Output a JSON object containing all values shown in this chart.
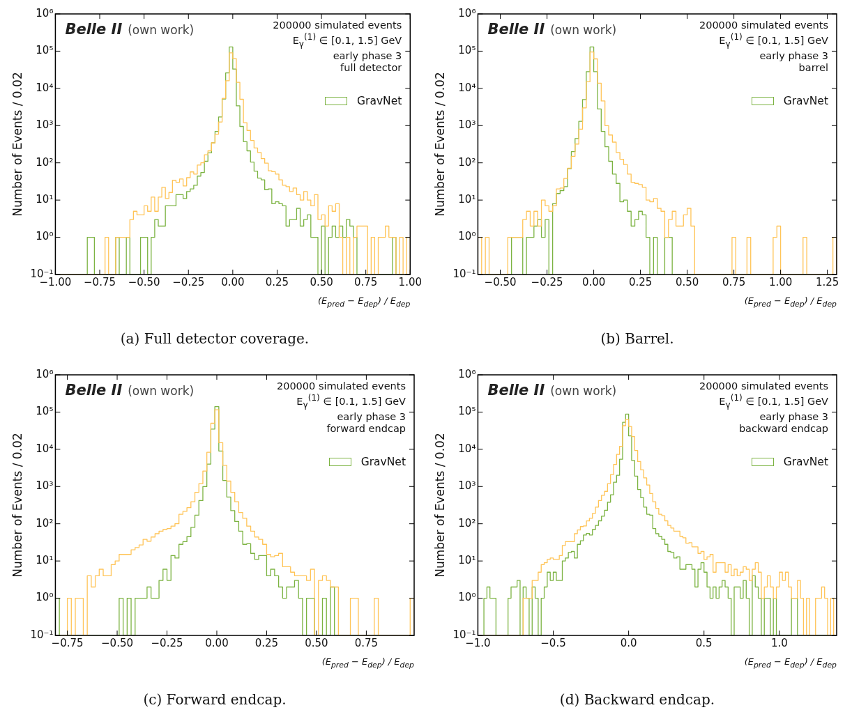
{
  "chart_data": [
    {
      "type": "histogram",
      "title": "(a) Full detector coverage.",
      "xlabel": "(E$_{pred}$ − E$_{dep}$) / E$_{dep}$",
      "ylabel": "Number of Events / 0.02",
      "annotations": [
        "Belle II",
        "(own work)",
        "200000 simulated events",
        "E$_{γ}$$^{(1)}$ ∈ [0.1, 1.5] GeV",
        "early phase 3",
        "full detector"
      ],
      "bins": [
        -1,
        -0.98,
        -0.96,
        -0.94,
        -0.92,
        -0.9,
        -0.88,
        -0.86,
        -0.84,
        -0.82,
        -0.8,
        -0.78,
        -0.76,
        -0.74,
        -0.72,
        -0.7,
        -0.68,
        -0.66,
        -0.64,
        -0.62,
        -0.6,
        -0.58,
        -0.56,
        -0.54,
        -0.52,
        -0.5,
        -0.48,
        -0.46,
        -0.44,
        -0.42,
        -0.4,
        -0.38,
        -0.36,
        -0.34,
        -0.32,
        -0.3,
        -0.28,
        -0.26,
        -0.24,
        -0.22,
        -0.2,
        -0.18,
        -0.16,
        -0.14,
        -0.12,
        -0.1,
        -0.08,
        -0.06,
        -0.04,
        -0.02,
        0,
        0.02,
        0.04,
        0.06,
        0.08,
        0.1,
        0.12,
        0.14,
        0.16,
        0.18,
        0.2,
        0.22,
        0.24,
        0.26,
        0.28,
        0.3,
        0.32,
        0.34,
        0.36,
        0.38,
        0.4,
        0.42,
        0.44,
        0.46,
        0.48,
        0.5,
        0.52,
        0.54,
        0.56,
        0.58,
        0.6,
        0.62,
        0.64,
        0.66,
        0.68,
        0.7,
        0.72,
        0.74,
        0.76,
        0.78,
        0.8,
        0.82,
        0.84,
        0.86,
        0.88,
        0.9,
        0.92,
        0.94,
        0.96,
        0.98,
        1
      ],
      "series": [
        {
          "name": "GravNet",
          "color": "#7cb342",
          "values": [
            null,
            null,
            null,
            null,
            null,
            null,
            null,
            null,
            null,
            1,
            1,
            null,
            null,
            null,
            null,
            null,
            null,
            1,
            null,
            null,
            1,
            null,
            null,
            null,
            1,
            1,
            null,
            1,
            3,
            2,
            2,
            7,
            7,
            7,
            14,
            14,
            11,
            17,
            20,
            25,
            44,
            55,
            110,
            186,
            345,
            700,
            1700,
            5200,
            26000,
            130000,
            33000,
            3400,
            950,
            370,
            210,
            105,
            60,
            39,
            35,
            19,
            20,
            8,
            9,
            8,
            7,
            2,
            3,
            3,
            6,
            2,
            3,
            4,
            1,
            1,
            null,
            2,
            null,
            1,
            2,
            1,
            2,
            1,
            3,
            2,
            1,
            null,
            null,
            null,
            null,
            null,
            null,
            null,
            null,
            null,
            null,
            1,
            null,
            null,
            null,
            null
          ]
        },
        {
          "color": "#ffc457",
          "values": [
            null,
            null,
            null,
            null,
            null,
            null,
            null,
            null,
            null,
            null,
            null,
            null,
            null,
            null,
            1,
            null,
            null,
            1,
            1,
            1,
            1,
            3,
            5,
            4,
            4,
            7,
            5,
            12,
            5,
            12,
            22,
            11,
            16,
            34,
            30,
            37,
            24,
            40,
            57,
            50,
            87,
            100,
            165,
            210,
            345,
            590,
            1250,
            5400,
            16000,
            90000,
            63000,
            14600,
            5100,
            1200,
            740,
            400,
            250,
            190,
            130,
            98,
            61,
            58,
            50,
            35,
            25,
            23,
            17,
            21,
            14,
            10,
            17,
            10,
            7,
            14,
            3,
            4,
            2,
            7,
            5,
            8,
            1,
            null,
            1,
            null,
            1,
            2,
            2,
            2,
            null,
            1,
            null,
            1,
            1,
            2,
            1,
            1,
            null,
            1,
            null,
            1
          ]
        }
      ],
      "xlim": [
        -1,
        1
      ],
      "xticks": [
        {
          "value": -1,
          "label": "−1.00"
        },
        {
          "value": -0.75,
          "label": "−0.75"
        },
        {
          "value": -0.5,
          "label": "−0.50"
        },
        {
          "value": -0.25,
          "label": "−0.25"
        },
        {
          "value": 0,
          "label": "0.00"
        },
        {
          "value": 0.25,
          "label": "0.25"
        },
        {
          "value": 0.5,
          "label": "0.50"
        },
        {
          "value": 0.75,
          "label": "0.75"
        },
        {
          "value": 1,
          "label": "1.00"
        }
      ],
      "ylim": [
        0.1,
        1000000
      ],
      "yticks": [
        {
          "value": 0.1,
          "label": "10⁻¹"
        },
        {
          "value": 1,
          "label": "10⁰"
        },
        {
          "value": 10,
          "label": "10¹"
        },
        {
          "value": 100,
          "label": "10²"
        },
        {
          "value": 1000,
          "label": "10³"
        },
        {
          "value": 10000,
          "label": "10⁴"
        },
        {
          "value": 100000,
          "label": "10⁵"
        },
        {
          "value": 1000000,
          "label": "10⁶"
        }
      ],
      "log": "y",
      "legend": "top right"
    },
    {
      "type": "histogram",
      "title": "(b) Barrel.",
      "xlabel": "(E$_{pred}$ − E$_{dep}$) / E$_{dep}$",
      "ylabel": "Number of Events / 0.02",
      "annotations": [
        "Belle II",
        "(own work)",
        "200000 simulated events",
        "E$_{γ}$$^{(1)}$ ∈ [0.1, 1.5] GeV",
        "early phase 3",
        "barrel"
      ],
      "bins": [
        -0.62,
        -0.6,
        -0.58,
        -0.56,
        -0.54,
        -0.52,
        -0.5,
        -0.48,
        -0.46,
        -0.44,
        -0.42,
        -0.4,
        -0.38,
        -0.36,
        -0.34,
        -0.32,
        -0.3,
        -0.28,
        -0.26,
        -0.24,
        -0.22,
        -0.2,
        -0.18,
        -0.16,
        -0.14,
        -0.12,
        -0.1,
        -0.08,
        -0.06,
        -0.04,
        -0.02,
        0,
        0.02,
        0.04,
        0.06,
        0.08,
        0.1,
        0.12,
        0.14,
        0.16,
        0.18,
        0.2,
        0.22,
        0.24,
        0.26,
        0.28,
        0.3,
        0.32,
        0.34,
        0.36,
        0.38,
        0.4,
        0.42,
        0.44,
        0.46,
        0.48,
        0.5,
        0.52,
        0.54,
        0.56,
        0.58,
        0.6,
        0.62,
        0.64,
        0.66,
        0.68,
        0.7,
        0.72,
        0.74,
        0.76,
        0.78,
        0.8,
        0.82,
        0.84,
        0.86,
        0.88,
        0.9,
        0.92,
        0.94,
        0.96,
        0.98,
        1,
        1.02,
        1.04,
        1.06,
        1.08,
        1.1,
        1.12,
        1.14,
        1.16,
        1.18,
        1.2,
        1.22,
        1.24,
        1.26,
        1.28,
        1.3
      ],
      "series": [
        {
          "name": "GravNet",
          "color": "#7cb342",
          "values": [
            null,
            null,
            null,
            null,
            null,
            null,
            null,
            null,
            null,
            1,
            1,
            1,
            null,
            1,
            1,
            2,
            3,
            1,
            3,
            null,
            8,
            15,
            18,
            23,
            70,
            200,
            450,
            1300,
            5000,
            28000,
            130000,
            28000,
            2800,
            700,
            270,
            110,
            50,
            28,
            9,
            10,
            5,
            2,
            3,
            5,
            4,
            1,
            null,
            1,
            null,
            null,
            1,
            1,
            null,
            null,
            null,
            null,
            null,
            null,
            null,
            null,
            null,
            null,
            null,
            null,
            null,
            null,
            null,
            null,
            null,
            null,
            null,
            null,
            null,
            null,
            null,
            null,
            null,
            null,
            null,
            null,
            null,
            null,
            null,
            null,
            null,
            null,
            null,
            null,
            null,
            null,
            null,
            null,
            null,
            null,
            null,
            null
          ]
        },
        {
          "color": "#ffc457",
          "values": [
            1,
            null,
            1,
            null,
            null,
            null,
            null,
            null,
            1,
            1,
            1,
            1,
            3,
            5,
            2,
            5,
            2,
            10,
            7,
            5,
            7,
            20,
            21,
            38,
            72,
            150,
            320,
            800,
            3000,
            15000,
            95000,
            62000,
            13800,
            4600,
            1000,
            560,
            360,
            190,
            125,
            90,
            50,
            30,
            28,
            26,
            22,
            10,
            9,
            11,
            6,
            5,
            1,
            3,
            5,
            2,
            2,
            4,
            6,
            2,
            null,
            null,
            null,
            null,
            null,
            null,
            null,
            null,
            null,
            null,
            1,
            null,
            null,
            null,
            1,
            null,
            null,
            null,
            null,
            null,
            null,
            1,
            2,
            null,
            null,
            null,
            null,
            null,
            null,
            1,
            null,
            null,
            null,
            null,
            null,
            null,
            null,
            1
          ]
        }
      ],
      "xlim": [
        -0.62,
        1.3
      ],
      "xticks": [
        {
          "value": -0.5,
          "label": "−0.50"
        },
        {
          "value": -0.25,
          "label": "−0.25"
        },
        {
          "value": 0,
          "label": "0.00"
        },
        {
          "value": 0.25,
          "label": "0.25"
        },
        {
          "value": 0.5,
          "label": "0.50"
        },
        {
          "value": 0.75,
          "label": "0.75"
        },
        {
          "value": 1,
          "label": "1.00"
        },
        {
          "value": 1.25,
          "label": "1.25"
        }
      ],
      "ylim": [
        0.1,
        1000000
      ],
      "yticks": [
        {
          "value": 0.1,
          "label": "10⁻¹"
        },
        {
          "value": 1,
          "label": "10⁰"
        },
        {
          "value": 10,
          "label": "10¹"
        },
        {
          "value": 100,
          "label": "10²"
        },
        {
          "value": 1000,
          "label": "10³"
        },
        {
          "value": 10000,
          "label": "10⁴"
        },
        {
          "value": 100000,
          "label": "10⁵"
        },
        {
          "value": 1000000,
          "label": "10⁶"
        }
      ],
      "log": "y",
      "legend": "top right"
    },
    {
      "type": "histogram",
      "title": "(c) Forward endcap.",
      "xlabel": "(E$_{pred}$ − E$_{dep}$) / E$_{dep}$",
      "ylabel": "Number of Events / 0.02",
      "annotations": [
        "Belle II",
        "(own work)",
        "200000 simulated events",
        "E$_{γ}$$^{(1)}$ ∈ [0.1, 1.5] GeV",
        "early phase 3",
        "forward endcap"
      ],
      "bins": [
        -0.81,
        -0.79,
        -0.77,
        -0.75,
        -0.73,
        -0.71,
        -0.69,
        -0.67,
        -0.65,
        -0.63,
        -0.61,
        -0.59,
        -0.57,
        -0.55,
        -0.53,
        -0.51,
        -0.49,
        -0.47,
        -0.45,
        -0.43,
        -0.41,
        -0.39,
        -0.37,
        -0.35,
        -0.33,
        -0.31,
        -0.29,
        -0.27,
        -0.25,
        -0.23,
        -0.21,
        -0.19,
        -0.17,
        -0.15,
        -0.13,
        -0.11,
        -0.09,
        -0.07,
        -0.05,
        -0.03,
        -0.01,
        0.01,
        0.03,
        0.05,
        0.07,
        0.09,
        0.11,
        0.13,
        0.15,
        0.17,
        0.19,
        0.21,
        0.23,
        0.25,
        0.27,
        0.29,
        0.31,
        0.33,
        0.35,
        0.37,
        0.39,
        0.41,
        0.43,
        0.45,
        0.47,
        0.49,
        0.51,
        0.53,
        0.55,
        0.57,
        0.59,
        0.61,
        0.63,
        0.65,
        0.67,
        0.69,
        0.71,
        0.73,
        0.75,
        0.77,
        0.79,
        0.81,
        0.83,
        0.85,
        0.87,
        0.89,
        0.91,
        0.93,
        0.95,
        0.97,
        0.99
      ],
      "series": [
        {
          "name": "GravNet",
          "color": "#7cb342",
          "values": [
            1,
            null,
            null,
            null,
            null,
            null,
            null,
            null,
            null,
            null,
            null,
            null,
            null,
            null,
            null,
            null,
            1,
            null,
            1,
            null,
            1,
            1,
            1,
            2,
            1,
            1,
            3,
            6,
            3,
            14,
            12,
            28,
            33,
            45,
            80,
            170,
            420,
            1000,
            4000,
            35000,
            140000,
            9000,
            1450,
            520,
            225,
            115,
            63,
            28,
            29,
            16,
            11,
            14,
            14,
            4,
            6,
            4,
            2,
            1,
            2,
            2,
            3,
            1,
            null,
            1,
            1,
            null,
            null,
            1,
            null,
            2,
            null,
            null,
            null,
            null,
            null,
            null,
            null,
            null,
            null,
            null,
            null,
            null,
            null,
            null,
            null,
            null,
            null,
            null,
            null,
            null
          ]
        },
        {
          "color": "#ffc457",
          "values": [
            null,
            null,
            null,
            1,
            null,
            1,
            1,
            null,
            4,
            2,
            4,
            6,
            4,
            4,
            8,
            10,
            15,
            15,
            15,
            20,
            23,
            27,
            38,
            34,
            44,
            54,
            63,
            70,
            74,
            86,
            100,
            180,
            215,
            270,
            390,
            700,
            1200,
            2600,
            8300,
            50000,
            115000,
            15000,
            3700,
            1400,
            700,
            390,
            200,
            140,
            86,
            63,
            44,
            38,
            28,
            15,
            13,
            14,
            16,
            7,
            7,
            5,
            4,
            4,
            4,
            3,
            6,
            null,
            3,
            4,
            3,
            2,
            2,
            null,
            null,
            null,
            1,
            1,
            null,
            null,
            null,
            null,
            1,
            null,
            null,
            null,
            null,
            null,
            null,
            null,
            null,
            1
          ]
        }
      ],
      "xlim": [
        -0.81,
        0.99
      ],
      "xticks": [
        {
          "value": -0.75,
          "label": "−0.75"
        },
        {
          "value": -0.5,
          "label": "−0.50"
        },
        {
          "value": -0.25,
          "label": "−0.25"
        },
        {
          "value": 0,
          "label": "0.00"
        },
        {
          "value": 0.25,
          "label": "0.25"
        },
        {
          "value": 0.5,
          "label": "0.50"
        },
        {
          "value": 0.75,
          "label": "0.75"
        }
      ],
      "ylim": [
        0.1,
        1000000
      ],
      "yticks": [
        {
          "value": 0.1,
          "label": "10⁻¹"
        },
        {
          "value": 1,
          "label": "10⁰"
        },
        {
          "value": 10,
          "label": "10¹"
        },
        {
          "value": 100,
          "label": "10²"
        },
        {
          "value": 1000,
          "label": "10³"
        },
        {
          "value": 10000,
          "label": "10⁴"
        },
        {
          "value": 100000,
          "label": "10⁵"
        },
        {
          "value": 1000000,
          "label": "10⁶"
        }
      ],
      "log": "y",
      "legend": "top right"
    },
    {
      "type": "histogram",
      "title": "(d) Backward endcap.",
      "xlabel": "(E$_{pred}$ − E$_{dep}$) / E$_{dep}$",
      "ylabel": "Number of Events / 0.02",
      "annotations": [
        "Belle II",
        "(own work)",
        "200000 simulated events",
        "E$_{γ}$$^{(1)}$ ∈ [0.1, 1.5] GeV",
        "early phase 3",
        "backward endcap"
      ],
      "bins": [
        -1,
        -0.98,
        -0.96,
        -0.94,
        -0.92,
        -0.9,
        -0.88,
        -0.86,
        -0.84,
        -0.82,
        -0.8,
        -0.78,
        -0.76,
        -0.74,
        -0.72,
        -0.7,
        -0.68,
        -0.66,
        -0.64,
        -0.62,
        -0.6,
        -0.58,
        -0.56,
        -0.54,
        -0.52,
        -0.5,
        -0.48,
        -0.46,
        -0.44,
        -0.42,
        -0.4,
        -0.38,
        -0.36,
        -0.34,
        -0.32,
        -0.3,
        -0.28,
        -0.26,
        -0.24,
        -0.22,
        -0.2,
        -0.18,
        -0.16,
        -0.14,
        -0.12,
        -0.1,
        -0.08,
        -0.06,
        -0.04,
        -0.02,
        0,
        0.02,
        0.04,
        0.06,
        0.08,
        0.1,
        0.12,
        0.14,
        0.16,
        0.18,
        0.2,
        0.22,
        0.24,
        0.26,
        0.28,
        0.3,
        0.32,
        0.34,
        0.36,
        0.38,
        0.4,
        0.42,
        0.44,
        0.46,
        0.48,
        0.5,
        0.52,
        0.54,
        0.56,
        0.58,
        0.6,
        0.62,
        0.64,
        0.66,
        0.68,
        0.7,
        0.72,
        0.74,
        0.76,
        0.78,
        0.8,
        0.82,
        0.84,
        0.86,
        0.88,
        0.9,
        0.92,
        0.94,
        0.96,
        0.98,
        1,
        1.02,
        1.04,
        1.06,
        1.08,
        1.1,
        1.12,
        1.14,
        1.16,
        1.18,
        1.2,
        1.22,
        1.24,
        1.26,
        1.28,
        1.3,
        1.32,
        1.34,
        1.36,
        1.38
      ],
      "series": [
        {
          "name": "GravNet",
          "color": "#7cb342",
          "values": [
            null,
            null,
            1,
            2,
            1,
            1,
            null,
            null,
            null,
            null,
            1,
            2,
            2,
            3,
            null,
            2,
            1,
            null,
            2,
            1,
            null,
            1,
            2,
            5,
            3,
            5,
            3,
            3,
            10,
            12,
            17,
            18,
            12,
            28,
            35,
            50,
            55,
            50,
            70,
            90,
            120,
            160,
            230,
            380,
            600,
            1300,
            2000,
            5400,
            53000,
            88000,
            23000,
            5000,
            1900,
            830,
            500,
            280,
            180,
            170,
            74,
            54,
            46,
            38,
            28,
            18,
            17,
            12,
            13,
            6,
            6,
            8,
            8,
            6,
            2,
            6,
            9,
            5,
            2,
            1,
            2,
            1,
            2,
            3,
            2,
            1,
            null,
            2,
            2,
            1,
            3,
            1,
            null,
            4,
            2,
            1,
            null,
            1,
            1,
            null,
            1,
            null,
            null,
            null,
            null,
            null,
            1,
            1,
            null,
            null,
            null,
            null,
            null,
            null,
            null,
            null,
            null,
            null,
            null,
            null,
            null
          ]
        },
        {
          "color": "#ffc457",
          "values": [
            null,
            null,
            null,
            null,
            null,
            null,
            null,
            null,
            null,
            null,
            null,
            null,
            null,
            null,
            null,
            1,
            1,
            1,
            3,
            3,
            5,
            8,
            9,
            11,
            12,
            11,
            11,
            14,
            26,
            33,
            33,
            33,
            54,
            68,
            84,
            87,
            119,
            140,
            190,
            280,
            420,
            580,
            740,
            1200,
            2100,
            3900,
            7300,
            12000,
            43000,
            63000,
            41000,
            22000,
            9300,
            4700,
            2800,
            1700,
            1100,
            650,
            390,
            260,
            180,
            165,
            120,
            90,
            77,
            63,
            63,
            46,
            42,
            30,
            31,
            24,
            24,
            16,
            18,
            11,
            13,
            15,
            5,
            9,
            9,
            9,
            5,
            8,
            4,
            6,
            4,
            5,
            7,
            6,
            3,
            6,
            9,
            5,
            1,
            2,
            4,
            2,
            1,
            2,
            5,
            3,
            5,
            2,
            1,
            1,
            3,
            1,
            null,
            1,
            null,
            null,
            1,
            1,
            2,
            1,
            null,
            1,
            null
          ]
        }
      ],
      "xlim": [
        -1,
        1.38
      ],
      "xticks": [
        {
          "value": -1,
          "label": "−1.0"
        },
        {
          "value": -0.5,
          "label": "−0.5"
        },
        {
          "value": 0,
          "label": "0.0"
        },
        {
          "value": 0.5,
          "label": "0.5"
        },
        {
          "value": 1,
          "label": "1.0"
        }
      ],
      "ylim": [
        0.1,
        1000000
      ],
      "yticks": [
        {
          "value": 0.1,
          "label": "10⁻¹"
        },
        {
          "value": 1,
          "label": "10⁰"
        },
        {
          "value": 10,
          "label": "10¹"
        },
        {
          "value": 100,
          "label": "10²"
        },
        {
          "value": 1000,
          "label": "10³"
        },
        {
          "value": 10000,
          "label": "10⁴"
        },
        {
          "value": 100000,
          "label": "10⁵"
        },
        {
          "value": 1000000,
          "label": "10⁶"
        }
      ],
      "log": "y",
      "legend": "top right"
    }
  ]
}
